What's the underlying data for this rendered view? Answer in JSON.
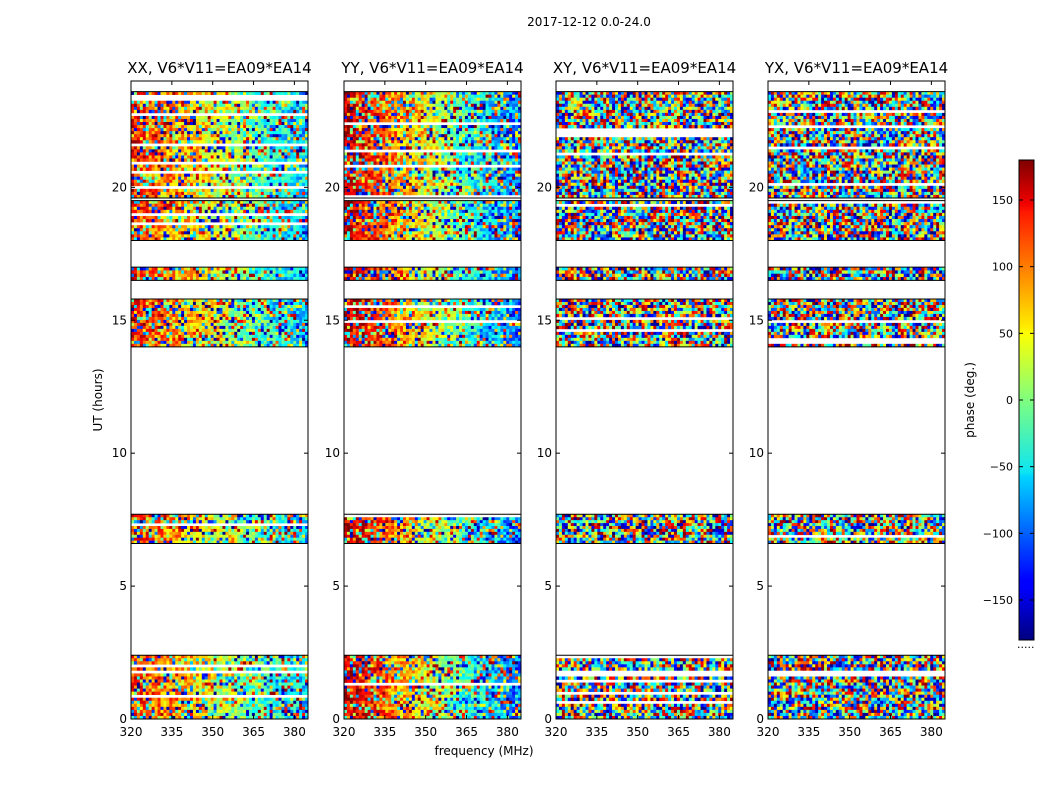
{
  "chart_data": {
    "type": "heatmap",
    "suptitle": "2017-12-12 0.0-24.0",
    "xlabel": "frequency (MHz)",
    "ylabel": "UT (hours)",
    "xlim": [
      320,
      385
    ],
    "ylim": [
      0,
      24
    ],
    "xticks": [
      320,
      335,
      350,
      365,
      380
    ],
    "yticks": [
      0,
      5,
      10,
      15,
      20
    ],
    "panels": [
      {
        "title": "XX, V6*V11=EA09*EA14",
        "polarization": "XX",
        "coherent": true
      },
      {
        "title": "YY, V6*V11=EA09*EA14",
        "polarization": "YY",
        "coherent": true
      },
      {
        "title": "XY, V6*V11=EA09*EA14",
        "polarization": "XY",
        "coherent": false
      },
      {
        "title": "YX, V6*V11=EA09*EA14",
        "polarization": "YX",
        "coherent": false
      }
    ],
    "data_time_ranges_hours": [
      [
        0.0,
        2.4
      ],
      [
        6.6,
        7.7
      ],
      [
        14.0,
        15.8
      ],
      [
        16.5,
        17.0
      ],
      [
        18.0,
        19.5
      ],
      [
        19.6,
        23.6
      ]
    ],
    "colorbar": {
      "label": "phase (deg.)",
      "range": [
        -180,
        180
      ],
      "ticks": [
        -150,
        -100,
        -50,
        0,
        50,
        100,
        150
      ],
      "tick_labels": [
        "−150",
        "−100",
        "−50",
        "0",
        "50",
        "100",
        "150"
      ],
      "colormap": "jet",
      "footer": "....."
    }
  }
}
